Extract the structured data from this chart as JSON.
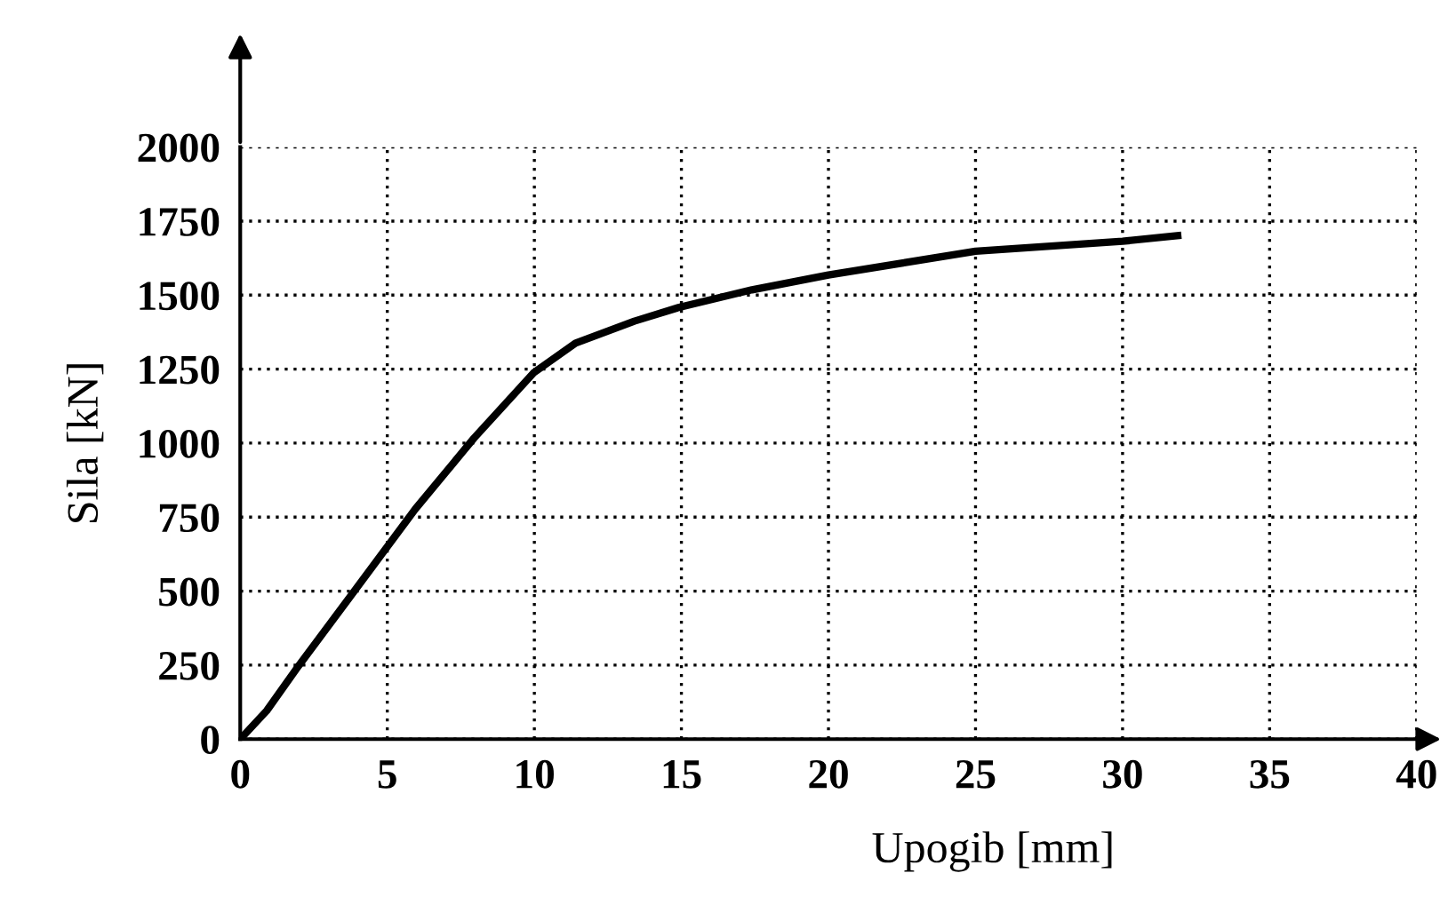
{
  "chart_data": {
    "type": "line",
    "xlabel": "Upogib [mm]",
    "ylabel": "Sila [kN]",
    "x": [
      0,
      0.9,
      1.9,
      3.7,
      4.9,
      5.95,
      7.95,
      9.97,
      11.4,
      13.4,
      14.9,
      17.4,
      20,
      25,
      30,
      32
    ],
    "series": [
      {
        "color": "#000000",
        "values": [
          0,
          96,
          236,
          476,
          637,
          777,
          1017,
          1237,
          1338,
          1412,
          1458,
          1518,
          1568,
          1648,
          1682,
          1702
        ]
      }
    ],
    "xlim": [
      0,
      40
    ],
    "ylim": [
      0,
      2000
    ],
    "xticks": [
      0,
      5,
      10,
      15,
      20,
      25,
      30,
      35,
      40
    ],
    "yticks": [
      0,
      250,
      500,
      750,
      1000,
      1250,
      1500,
      1750,
      2000
    ],
    "grid": true,
    "line_style": "solid",
    "marker": "none"
  }
}
